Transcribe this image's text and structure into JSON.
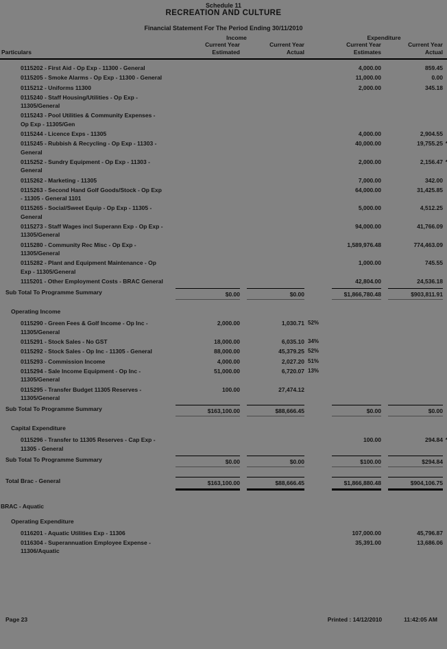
{
  "header": {
    "schedule": "Schedule 11",
    "title": "RECREATION AND CULTURE",
    "subtitle": "Financial Statement For The Period Ending 30/11/2010"
  },
  "columns": {
    "particulars": "Particulars",
    "income_group": "Income",
    "expenditure_group": "Expenditure",
    "income_estimated": "Current Year\nEstimated",
    "income_actual": "Current Year\nActual",
    "expenditure_estimated": "Current Year\nEstimates",
    "expenditure_actual": "Current Year\nActual"
  },
  "colors": {
    "page_background": "#828282",
    "text": "#121212",
    "rule": "#000000"
  },
  "blocks": [
    {
      "type": "rows",
      "rows": [
        {
          "label": "0115202 - First Aid - Op Exp - 11300 - General",
          "exp_est": "4,000.00",
          "exp_act": "859.45"
        },
        {
          "label": "0115205 - Smoke Alarms - Op Exp - 11300 - General",
          "exp_est": "11,000.00",
          "exp_act": "0.00"
        },
        {
          "label": "0115212 - Uniforms 11300",
          "exp_est": "2,000.00",
          "exp_act": "345.18"
        },
        {
          "label": "0115240 - Staff Housing/Utilities - Op Exp - 11305/General"
        },
        {
          "label": "0115243 - Pool Utilities & Community Expenses - Op Exp - 11305/Gen"
        },
        {
          "label": "0115244 - Licence Exps - 11305",
          "exp_est": "4,000.00",
          "exp_act": "2,904.55"
        },
        {
          "label": "0115245 - Rubbish & Recycling - Op Exp - 11303 - General",
          "exp_est": "40,000.00",
          "exp_act": "19,755.25",
          "exp_note": "*"
        },
        {
          "label": "0115252 - Sundry Equipment - Op Exp - 11303 - General",
          "exp_est": "2,000.00",
          "exp_act": "2,156.47",
          "exp_note": "*"
        },
        {
          "label": "0115262 - Marketing - 11305",
          "exp_est": "7,000.00",
          "exp_act": "342.00"
        },
        {
          "label": "0115263 - Second Hand Golf Goods/Stock - Op Exp - 11305 - General 1101",
          "exp_est": "64,000.00",
          "exp_act": "31,425.85"
        },
        {
          "label": "0115265 - Social/Sweet Equip - Op Exp - 11305 - General",
          "exp_est": "5,000.00",
          "exp_act": "4,512.25"
        },
        {
          "label": "0115273 - Staff Wages incl Superann Exp - Op Exp - 11305/General",
          "exp_est": "94,000.00",
          "exp_act": "41,766.09"
        },
        {
          "label": "0115280 - Community Rec Misc - Op Exp - 11305/General",
          "exp_est": "1,589,976.48",
          "exp_act": "774,463.09"
        },
        {
          "label": "0115282 - Plant and Equipment Maintenance - Op Exp - 11305/General",
          "exp_est": "1,000.00",
          "exp_act": "745.55"
        },
        {
          "label": "1115201 - Other Employment Costs - BRAC General",
          "exp_est": "42,804.00",
          "exp_act": "24,536.18"
        }
      ]
    },
    {
      "type": "subtotal",
      "label": "Sub Total To Programme Summary",
      "inc_est": "$0.00",
      "inc_act": "$0.00",
      "exp_est": "$1,866,780.48",
      "exp_act": "$903,811.91"
    },
    {
      "type": "heading",
      "label": "Operating Income"
    },
    {
      "type": "rows",
      "rows": [
        {
          "label": "0115290 - Green Fees & Golf Income - Op Inc - 11305/General",
          "inc_est": "2,000.00",
          "inc_act": "1,030.71",
          "pct": "52%"
        },
        {
          "label": "0115291 - Stock Sales - No GST",
          "inc_est": "18,000.00",
          "inc_act": "6,035.10",
          "pct": "34%"
        },
        {
          "label": "0115292 - Stock Sales - Op Inc - 11305 - General",
          "inc_est": "88,000.00",
          "inc_act": "45,379.25",
          "pct": "52%"
        },
        {
          "label": "0115293 - Commission Income",
          "inc_est": "4,000.00",
          "inc_act": "2,027.20",
          "pct": "51%"
        },
        {
          "label": "0115294 - Sale Income Equipment - Op Inc - 11305/General",
          "inc_est": "51,000.00",
          "inc_act": "6,720.07",
          "pct": "13%"
        },
        {
          "label": "0115295 - Transfer Budget 11305 Reserves - 11305/General",
          "inc_est": "100.00",
          "inc_act": "27,474.12"
        }
      ]
    },
    {
      "type": "subtotal",
      "label": "Sub Total To Programme Summary",
      "inc_est": "$163,100.00",
      "inc_act": "$88,666.45",
      "exp_est": "$0.00",
      "exp_act": "$0.00"
    },
    {
      "type": "heading",
      "label": "Capital Expenditure"
    },
    {
      "type": "rows",
      "rows": [
        {
          "label": "0115296 - Transfer to 11305 Reserves - Cap Exp - 11305 - General",
          "exp_est": "100.00",
          "exp_act": "294.84",
          "exp_note": "*"
        }
      ]
    },
    {
      "type": "subtotal",
      "label": "Sub Total To Programme Summary",
      "inc_est": "$0.00",
      "inc_act": "$0.00",
      "exp_est": "$100.00",
      "exp_act": "$294.84"
    },
    {
      "type": "total",
      "label": "Total Brac - General",
      "inc_est": "$163,100.00",
      "inc_act": "$88,666.45",
      "exp_est": "$1,866,880.48",
      "exp_act": "$904,106.75"
    },
    {
      "type": "section",
      "label": "BRAC - Aquatic"
    },
    {
      "type": "heading",
      "label": "Operating Expenditure"
    },
    {
      "type": "rows",
      "rows": [
        {
          "label": "0116201 - Aquatic Utilities Exp - 11306",
          "exp_est": "107,000.00",
          "exp_act": "45,796.87"
        },
        {
          "label": "0116304 - Superannuation Employee Expense - 11306/Aquatic",
          "exp_est": "35,391.00",
          "exp_act": "13,686.06"
        }
      ]
    }
  ],
  "footer": {
    "page": "Page 23",
    "printed": "Printed : 14/12/2010",
    "time": "11:42:05 AM"
  }
}
